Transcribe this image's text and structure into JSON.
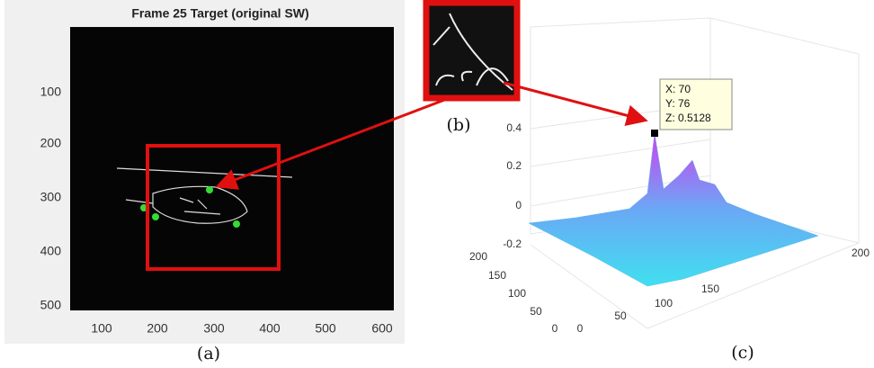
{
  "panel_a": {
    "title": "Frame 25 Target (original SW)",
    "xticks": [
      "100",
      "200",
      "300",
      "400",
      "500",
      "600"
    ],
    "yticks": [
      "100",
      "200",
      "300",
      "400",
      "500"
    ],
    "caption": "(a)"
  },
  "panel_b": {
    "caption": "(b)"
  },
  "panel_c": {
    "datatip": [
      "X: 70",
      "Y: 76",
      "Z: 0.5128"
    ],
    "zticks": [
      "0.4",
      "0.2",
      "0",
      "-0.2"
    ],
    "left_axis_ticks": [
      "200",
      "150",
      "100",
      "50",
      "0"
    ],
    "right_axis_ticks": [
      "0",
      "50",
      "100",
      "150",
      "200"
    ],
    "caption": "(c)"
  }
}
